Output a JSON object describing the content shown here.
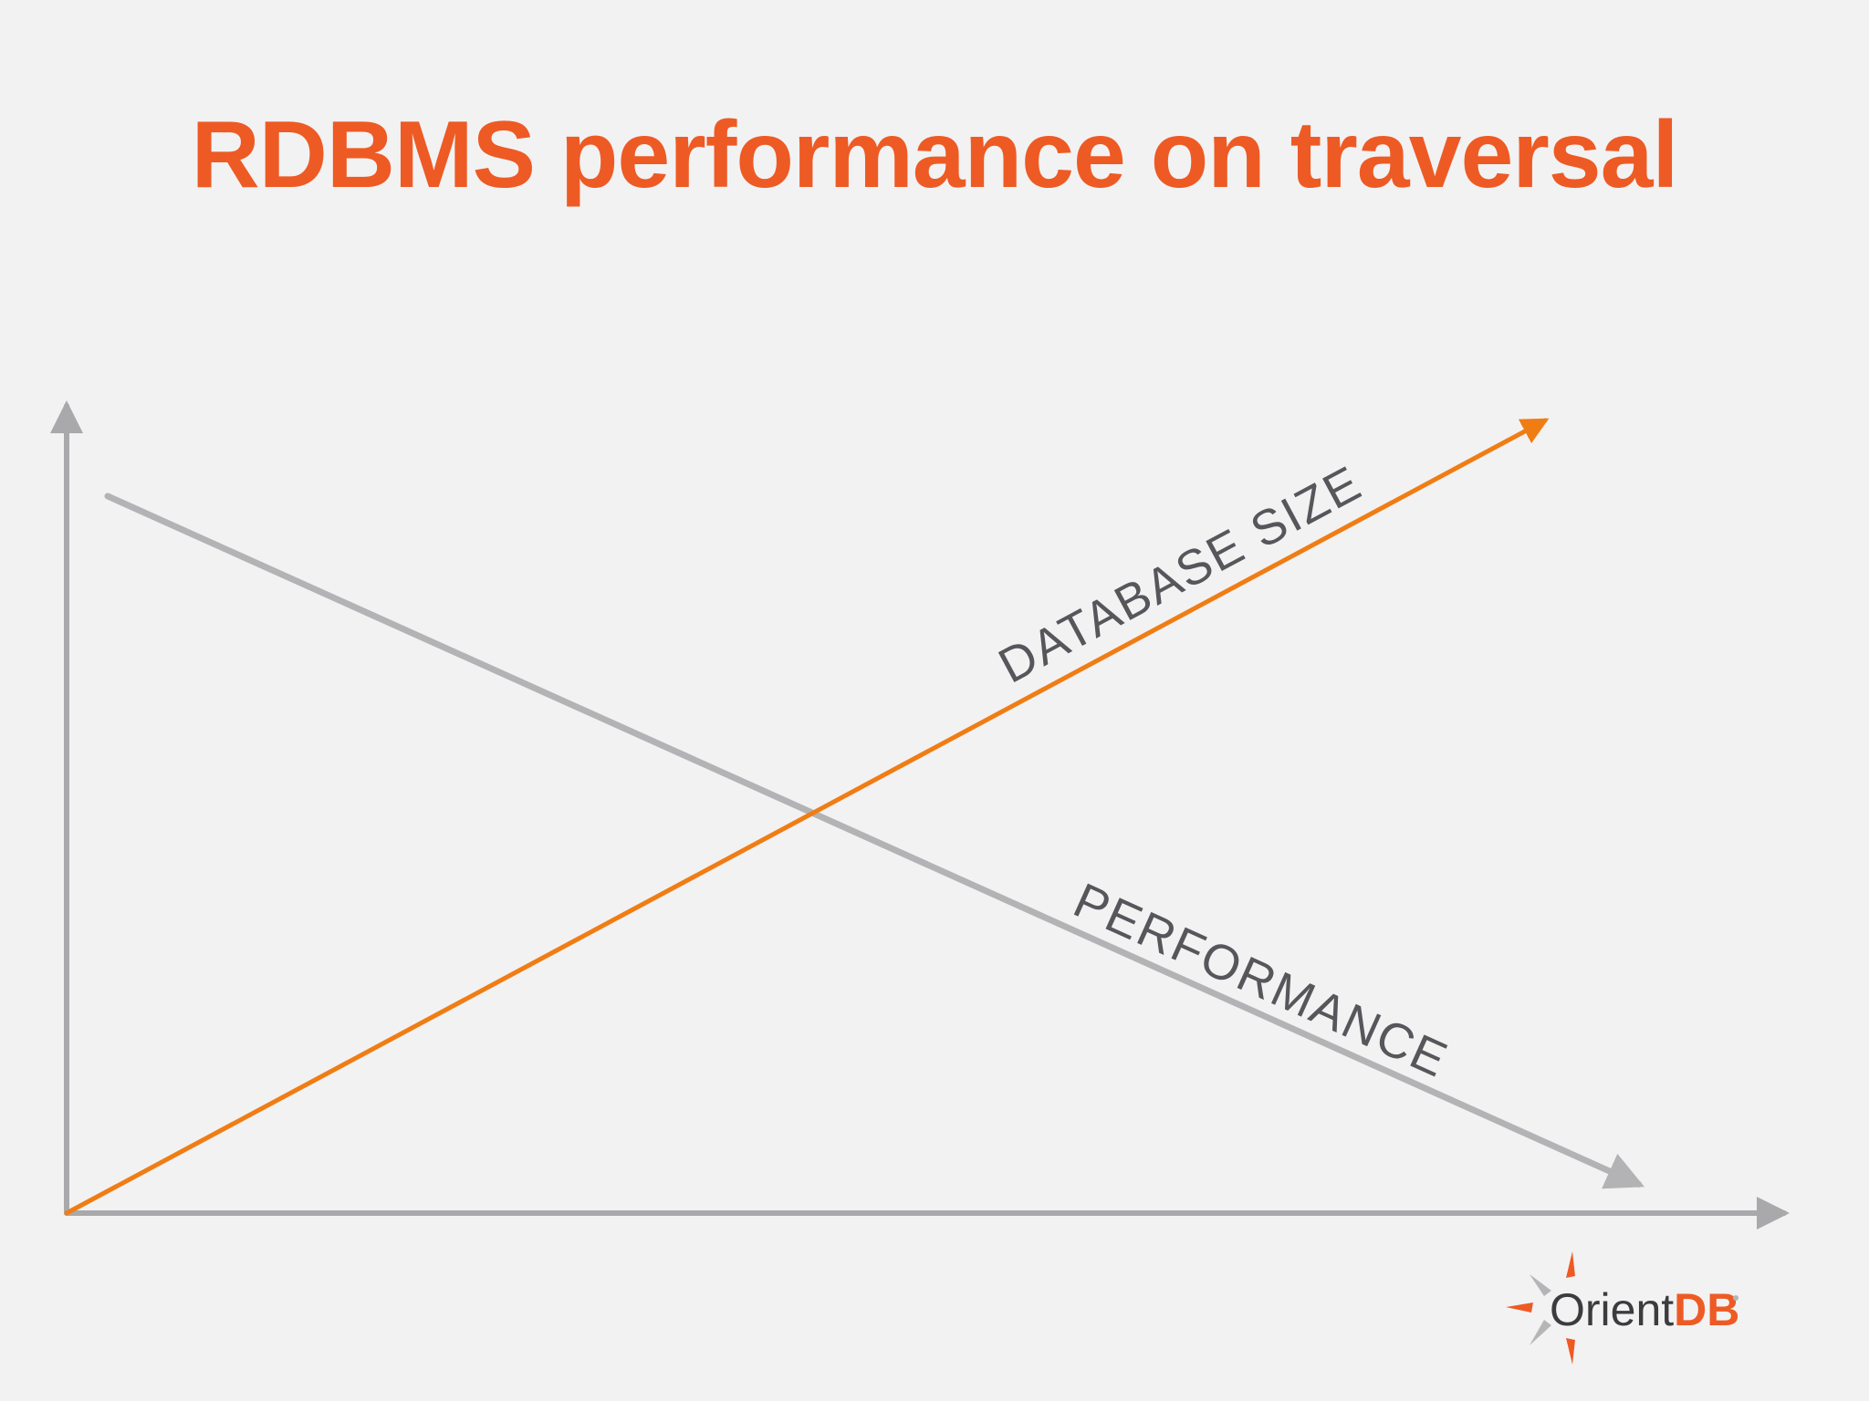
{
  "slide": {
    "title": "RDBMS performance on traversal"
  },
  "colors": {
    "title": "#ee5a24",
    "axis": "#a9a9ac",
    "database_size_line": "#f07d14",
    "performance_line": "#b3b3b6",
    "label_text": "#56565b",
    "logo_gray": "#3c3c3f",
    "logo_orange": "#ee5a24"
  },
  "chart_data": {
    "type": "line",
    "title": "RDBMS performance on traversal",
    "xlabel": "",
    "ylabel": "",
    "xlim": [
      0,
      100
    ],
    "ylim": [
      0,
      100
    ],
    "grid": false,
    "legend": "none",
    "series": [
      {
        "name": "DATABASE SIZE",
        "trend": "increasing",
        "x": [
          0,
          90
        ],
        "y": [
          0,
          110
        ]
      },
      {
        "name": "PERFORMANCE",
        "trend": "decreasing",
        "x": [
          2.5,
          95.7
        ],
        "y": [
          99.5,
          4
        ]
      }
    ]
  },
  "logo": {
    "brand_prefix": "Orient",
    "brand_suffix": "DB",
    "icon": "orientdb-compass-icon"
  }
}
